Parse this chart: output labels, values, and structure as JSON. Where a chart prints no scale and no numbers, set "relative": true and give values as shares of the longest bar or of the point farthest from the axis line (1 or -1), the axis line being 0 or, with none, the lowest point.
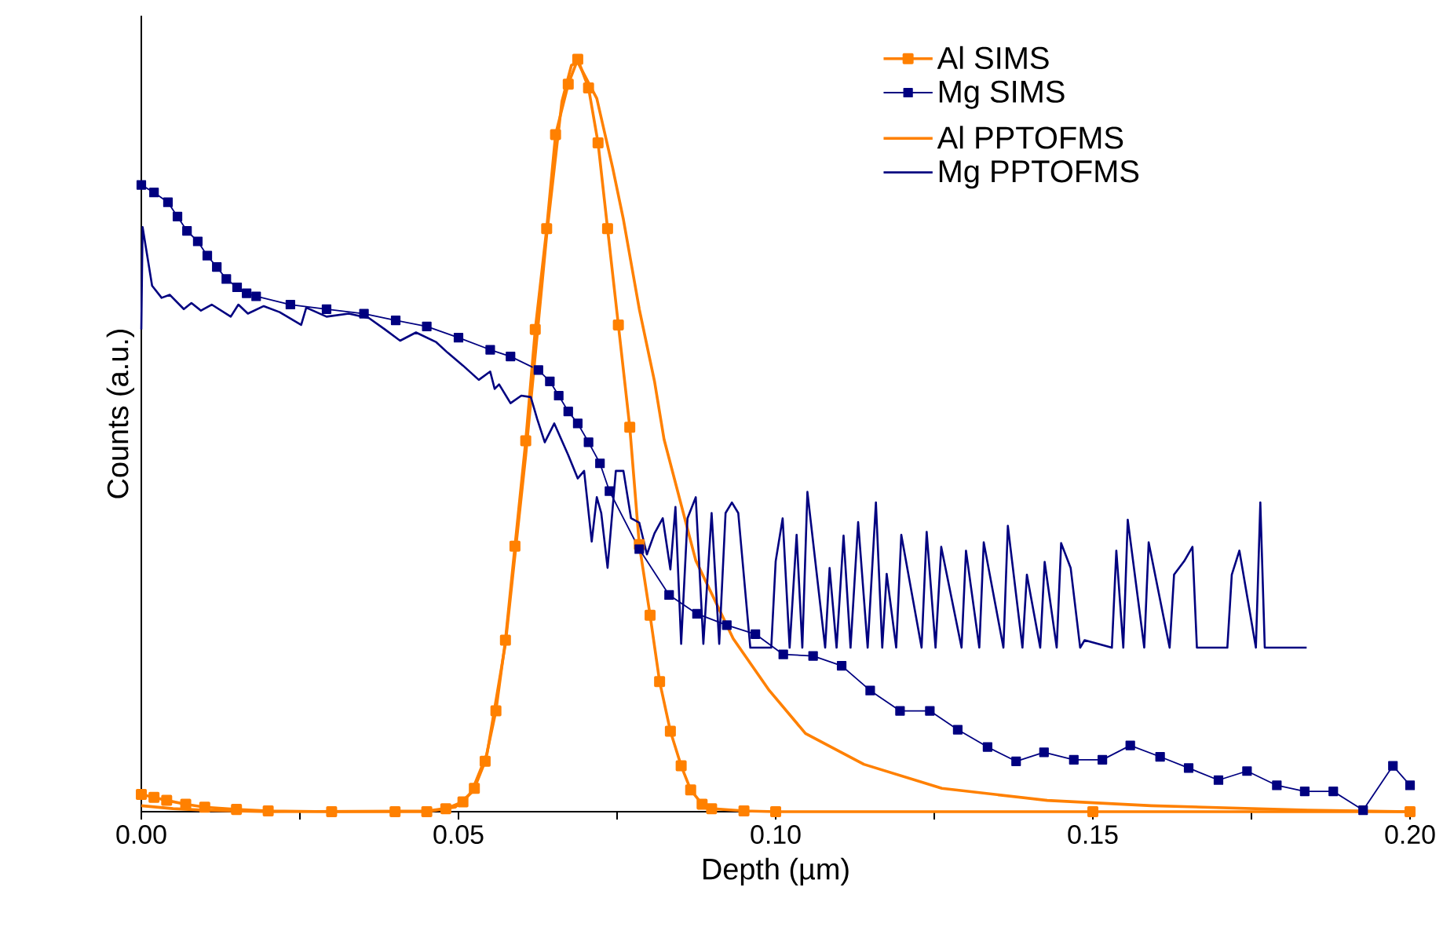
{
  "chart_data": {
    "type": "line",
    "xlabel": "Depth (µm)",
    "ylabel": "Counts (a.u.)",
    "relative": true,
    "legend": "top right",
    "xlim": [
      0,
      0.2
    ],
    "xticks": [
      {
        "value": 0,
        "label": "0.00"
      },
      {
        "value": 0.025,
        "label": null
      },
      {
        "value": 0.05,
        "label": "0.05"
      },
      {
        "value": 0.075,
        "label": null
      },
      {
        "value": 0.1,
        "label": "0.10"
      },
      {
        "value": 0.125,
        "label": null
      },
      {
        "value": 0.15,
        "label": "0.15"
      },
      {
        "value": 0.175,
        "label": null
      },
      {
        "value": 0.2,
        "label": "0.20"
      }
    ],
    "series": [
      {
        "name": "Al SIMS",
        "color": "#ff8000",
        "marker": "square",
        "x": [
          0,
          0.002,
          0.004,
          0.007,
          0.01,
          0.015,
          0.02,
          0.03,
          0.04,
          0.045,
          0.048,
          0.0507,
          0.0525,
          0.0542,
          0.0559,
          0.0574,
          0.0589,
          0.0606,
          0.0621,
          0.0639,
          0.0653,
          0.0673,
          0.0688,
          0.0705,
          0.072,
          0.0735,
          0.0752,
          0.077,
          0.0785,
          0.0802,
          0.0817,
          0.0834,
          0.0851,
          0.0866,
          0.0884,
          0.0899,
          0.095,
          0.1,
          0.15,
          0.2
        ],
        "values": [
          0.023,
          0.019,
          0.015,
          0.01,
          0.006,
          0.003,
          0.001,
          0,
          0,
          0,
          0.004,
          0.013,
          0.031,
          0.067,
          0.134,
          0.228,
          0.353,
          0.493,
          0.641,
          0.775,
          0.9,
          0.967,
          1.0,
          0.962,
          0.889,
          0.775,
          0.647,
          0.511,
          0.355,
          0.261,
          0.173,
          0.107,
          0.061,
          0.029,
          0.01,
          0.004,
          0.001,
          0,
          0,
          0
        ]
      },
      {
        "name": "Mg SIMS",
        "color": "#000080",
        "marker": "square",
        "x": [
          0,
          0.002,
          0.0042,
          0.0057,
          0.0072,
          0.0089,
          0.0104,
          0.0119,
          0.0134,
          0.0151,
          0.0166,
          0.0181,
          0.0235,
          0.0292,
          0.0351,
          0.0401,
          0.045,
          0.05,
          0.055,
          0.0582,
          0.0626,
          0.0644,
          0.0658,
          0.0673,
          0.0688,
          0.0705,
          0.0723,
          0.0738,
          0.0785,
          0.0832,
          0.0876,
          0.0923,
          0.0968,
          0.1012,
          0.1059,
          0.1104,
          0.1149,
          0.1196,
          0.1243,
          0.1287,
          0.1334,
          0.1379,
          0.1423,
          0.147,
          0.1515,
          0.1559,
          0.1606,
          0.1651,
          0.1698,
          0.1743,
          0.179,
          0.1834,
          0.1879,
          0.1926,
          0.1973,
          0.2
        ],
        "values": [
          0.833,
          0.823,
          0.81,
          0.791,
          0.772,
          0.758,
          0.739,
          0.724,
          0.708,
          0.697,
          0.689,
          0.685,
          0.674,
          0.668,
          0.662,
          0.653,
          0.645,
          0.63,
          0.614,
          0.605,
          0.587,
          0.572,
          0.553,
          0.532,
          0.516,
          0.491,
          0.463,
          0.426,
          0.349,
          0.288,
          0.263,
          0.248,
          0.236,
          0.209,
          0.207,
          0.194,
          0.161,
          0.134,
          0.134,
          0.109,
          0.086,
          0.067,
          0.079,
          0.069,
          0.069,
          0.088,
          0.073,
          0.058,
          0.042,
          0.054,
          0.035,
          0.027,
          0.027,
          0.002,
          0.061,
          0.035
        ]
      },
      {
        "name": "Al PPTOFMS",
        "color": "#ff8000",
        "marker": "none",
        "x": [
          0,
          0.005,
          0.01,
          0.02,
          0.045,
          0.0495,
          0.052,
          0.0545,
          0.0574,
          0.0606,
          0.0639,
          0.0663,
          0.0678,
          0.0688,
          0.0718,
          0.0743,
          0.076,
          0.0785,
          0.0809,
          0.0824,
          0.0874,
          0.0933,
          0.099,
          0.1047,
          0.1139,
          0.1262,
          0.1428,
          0.1592,
          0.1839,
          0.2
        ],
        "values": [
          0.008,
          0.004,
          0.002,
          0,
          0.001,
          0.006,
          0.025,
          0.077,
          0.223,
          0.474,
          0.766,
          0.944,
          0.992,
          0.996,
          0.948,
          0.856,
          0.787,
          0.668,
          0.572,
          0.495,
          0.334,
          0.23,
          0.161,
          0.104,
          0.063,
          0.031,
          0.015,
          0.008,
          0.002,
          0
        ]
      },
      {
        "name": "Mg PPTOFMS",
        "color": "#000080",
        "marker": "none",
        "x": [
          0,
          0.0002,
          0.0017,
          0.0032,
          0.0045,
          0.0067,
          0.0079,
          0.0094,
          0.0111,
          0.0141,
          0.0153,
          0.0168,
          0.0193,
          0.0218,
          0.0252,
          0.026,
          0.0292,
          0.0327,
          0.0359,
          0.0384,
          0.0408,
          0.0433,
          0.0465,
          0.0483,
          0.0507,
          0.0532,
          0.055,
          0.0557,
          0.0564,
          0.0582,
          0.0599,
          0.0614,
          0.0624,
          0.0636,
          0.0651,
          0.0673,
          0.0688,
          0.0698,
          0.071,
          0.0718,
          0.0725,
          0.0735,
          0.0748,
          0.076,
          0.0772,
          0.0785,
          0.0797,
          0.0809,
          0.0822,
          0.0834,
          0.0842,
          0.0851,
          0.0861,
          0.0874,
          0.0886,
          0.0899,
          0.0911,
          0.0921,
          0.0931,
          0.0941,
          0.096,
          0.0993,
          0.1,
          0.1011,
          0.1022,
          0.1033,
          0.1042,
          0.105,
          0.1078,
          0.1085,
          0.1096,
          0.1107,
          0.1118,
          0.113,
          0.1145,
          0.1158,
          0.1168,
          0.1175,
          0.119,
          0.1198,
          0.123,
          0.1238,
          0.1252,
          0.1261,
          0.1293,
          0.13,
          0.1321,
          0.1328,
          0.1359,
          0.1366,
          0.1389,
          0.1396,
          0.1417,
          0.1424,
          0.1443,
          0.145,
          0.1465,
          0.148,
          0.1487,
          0.153,
          0.1537,
          0.1548,
          0.1555,
          0.1581,
          0.1588,
          0.1621,
          0.1628,
          0.1644,
          0.1657,
          0.1664,
          0.1712,
          0.1719,
          0.1731,
          0.1757,
          0.1764,
          0.1771,
          0.1837
        ],
        "values": [
          0.641,
          0.777,
          0.699,
          0.683,
          0.687,
          0.668,
          0.676,
          0.666,
          0.674,
          0.658,
          0.674,
          0.662,
          0.672,
          0.664,
          0.647,
          0.67,
          0.658,
          0.662,
          0.656,
          0.641,
          0.626,
          0.637,
          0.624,
          0.61,
          0.593,
          0.574,
          0.585,
          0.562,
          0.568,
          0.543,
          0.553,
          0.551,
          0.522,
          0.491,
          0.516,
          0.474,
          0.443,
          0.453,
          0.359,
          0.418,
          0.397,
          0.324,
          0.453,
          0.453,
          0.39,
          0.384,
          0.342,
          0.37,
          0.39,
          0.322,
          0.405,
          0.223,
          0.39,
          0.418,
          0.223,
          0.397,
          0.223,
          0.397,
          0.411,
          0.397,
          0.218,
          0.218,
          0.333,
          0.39,
          0.218,
          0.368,
          0.218,
          0.425,
          0.218,
          0.324,
          0.218,
          0.367,
          0.218,
          0.385,
          0.218,
          0.411,
          0.218,
          0.316,
          0.218,
          0.368,
          0.218,
          0.372,
          0.218,
          0.352,
          0.218,
          0.347,
          0.218,
          0.358,
          0.218,
          0.38,
          0.218,
          0.315,
          0.218,
          0.332,
          0.218,
          0.357,
          0.324,
          0.218,
          0.228,
          0.218,
          0.347,
          0.218,
          0.388,
          0.218,
          0.358,
          0.218,
          0.315,
          0.333,
          0.352,
          0.218,
          0.218,
          0.315,
          0.347,
          0.218,
          0.411,
          0.218,
          0.218
        ]
      }
    ]
  }
}
